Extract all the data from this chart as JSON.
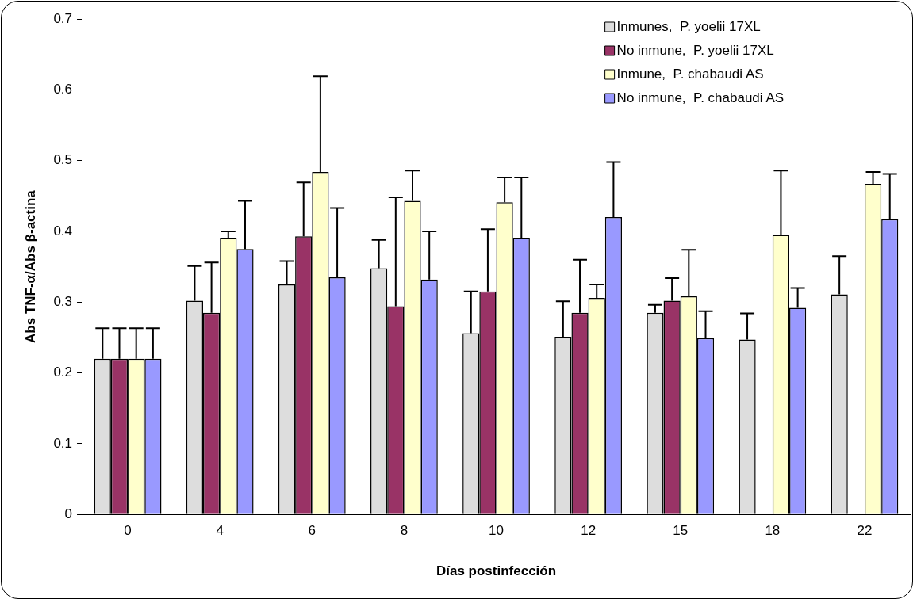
{
  "chart_data": {
    "type": "bar",
    "xlabel": "Días postinfección",
    "ylabel": "Abs TNF-α/Abs β-actina",
    "categories": [
      "0",
      "4",
      "6",
      "8",
      "10",
      "12",
      "15",
      "18",
      "22"
    ],
    "series": [
      {
        "name": "Inmunes,  P. yoelii 17XL",
        "color": "#dddddd",
        "values": [
          0.22,
          0.302,
          0.325,
          0.348,
          0.256,
          0.251,
          0.285,
          0.247,
          0.311
        ],
        "errors": [
          [
            0.22,
            0.263
          ],
          [
            0.302,
            0.351
          ],
          [
            0.325,
            0.358
          ],
          [
            0.348,
            0.388
          ],
          [
            0.256,
            0.315
          ],
          [
            0.251,
            0.301
          ],
          [
            0.285,
            0.296
          ],
          [
            0.247,
            0.284
          ],
          [
            0.311,
            0.365
          ]
        ]
      },
      {
        "name": "No inmune,  P. yoelii 17XL",
        "color": "#993366",
        "values": [
          0.22,
          0.285,
          0.393,
          0.294,
          0.315,
          0.285,
          0.302,
          null,
          null
        ],
        "errors": [
          [
            0.22,
            0.263
          ],
          [
            0.285,
            0.356
          ],
          [
            0.393,
            0.469
          ],
          [
            0.294,
            0.448
          ],
          [
            0.315,
            0.403
          ],
          [
            0.285,
            0.36
          ],
          [
            0.302,
            0.334
          ],
          null,
          null
        ]
      },
      {
        "name": "Inmune,  P. chabaudi AS",
        "color": "#ffffcc",
        "values": [
          0.22,
          0.391,
          0.484,
          0.443,
          0.441,
          0.306,
          0.308,
          0.395,
          0.467
        ],
        "errors": [
          [
            0.22,
            0.263
          ],
          [
            0.391,
            0.4
          ],
          [
            0.484,
            0.619
          ],
          [
            0.443,
            0.486
          ],
          [
            0.441,
            0.476
          ],
          [
            0.306,
            0.325
          ],
          [
            0.308,
            0.374
          ],
          [
            0.395,
            0.486
          ],
          [
            0.467,
            0.484
          ]
        ]
      },
      {
        "name": "No inmune,  P. chabaudi AS",
        "color": "#9999ff",
        "values": [
          0.22,
          0.375,
          0.335,
          0.332,
          0.391,
          0.42,
          0.249,
          0.292,
          0.417
        ],
        "errors": [
          [
            0.22,
            0.263
          ],
          [
            0.375,
            0.443
          ],
          [
            0.335,
            0.433
          ],
          [
            0.332,
            0.4
          ],
          [
            0.391,
            0.476
          ],
          [
            0.42,
            0.498
          ],
          [
            0.249,
            0.287
          ],
          [
            0.292,
            0.32
          ],
          [
            0.417,
            0.481
          ]
        ]
      }
    ],
    "ylim": [
      0,
      0.7
    ],
    "yticks": [
      0,
      0.1,
      0.2,
      0.3,
      0.4,
      0.5,
      0.6,
      0.7
    ],
    "grid": false,
    "legend": "top right"
  }
}
